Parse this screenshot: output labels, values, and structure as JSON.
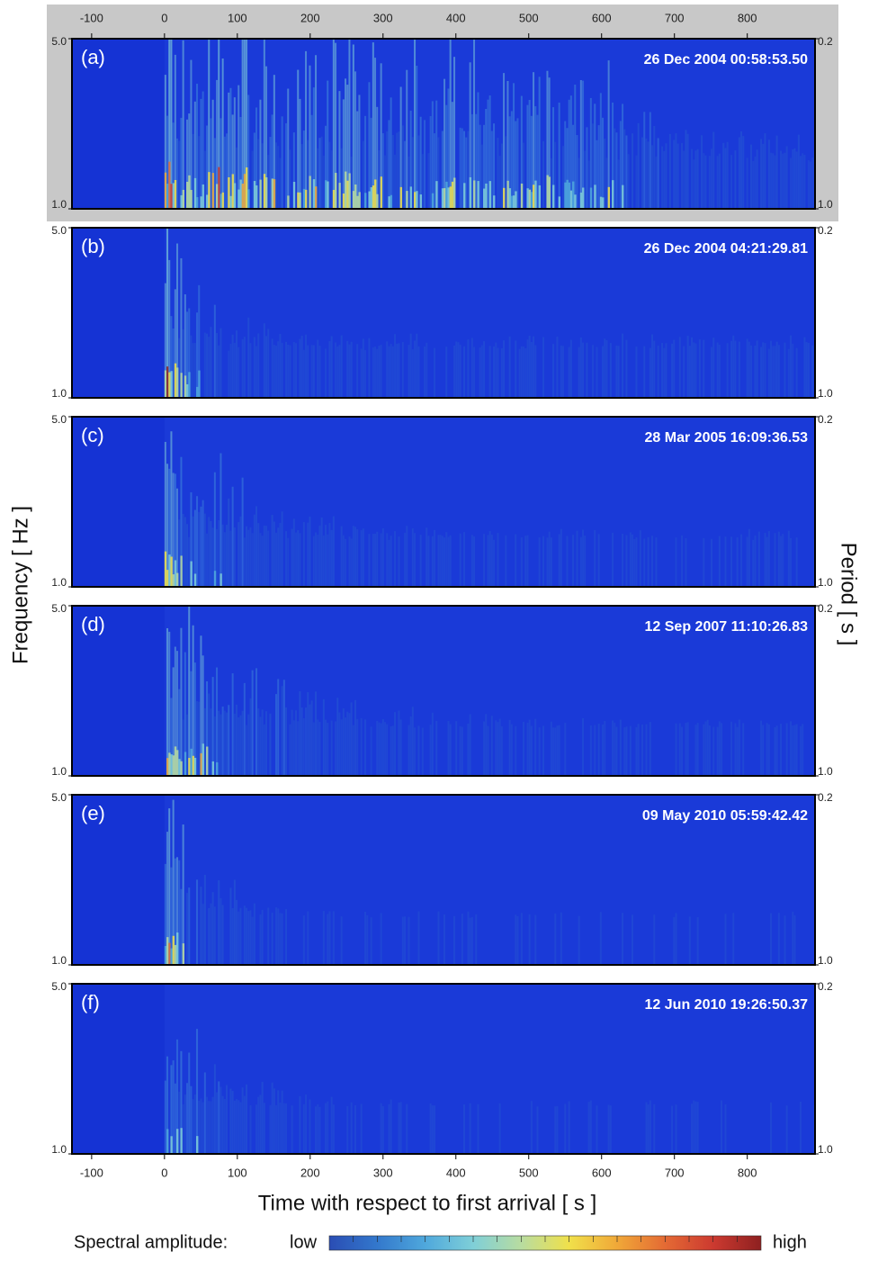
{
  "chart_data": {
    "type": "spectrogram",
    "xlabel": "Time with respect to first arrival  [ s ]",
    "ylabel": "Frequency  [ Hz ]",
    "y2label": "Period  [ s ]",
    "xlim": [
      -127,
      893
    ],
    "xticks": [
      -100,
      0,
      100,
      200,
      300,
      400,
      500,
      600,
      700,
      800
    ],
    "ylim": [
      1,
      5
    ],
    "yticks": [
      {
        "value": 1,
        "label": "1.0"
      },
      {
        "value": 5,
        "label": "5.0"
      }
    ],
    "y2lim": [
      1,
      0.2
    ],
    "y2ticks": [
      {
        "value": 1,
        "label": "1.0"
      },
      {
        "value": 0.2,
        "label": "0.2"
      }
    ],
    "panels": [
      {
        "label": "(a)",
        "title": "26 Dec 2004 00:58:53.50"
      },
      {
        "label": "(b)",
        "title": "26 Dec 2004 04:21:29.81"
      },
      {
        "label": "(c)",
        "title": "28 Mar 2005 16:09:36.53"
      },
      {
        "label": "(d)",
        "title": "12 Sep 2007 11:10:26.83"
      },
      {
        "label": "(e)",
        "title": "09 May 2010 05:59:42.42"
      },
      {
        "label": "(f)",
        "title": "12 Jun 2010 19:26:50.37"
      }
    ],
    "colorbar": {
      "label": "Spectral amplitude:",
      "low": "low",
      "high": "high",
      "colors": [
        "#2a4db4",
        "#3378cc",
        "#4fa8dc",
        "#7fcfd8",
        "#b8dca0",
        "#f0e04a",
        "#f0a838",
        "#e46a34",
        "#cc3a30",
        "#8e2020"
      ]
    }
  }
}
